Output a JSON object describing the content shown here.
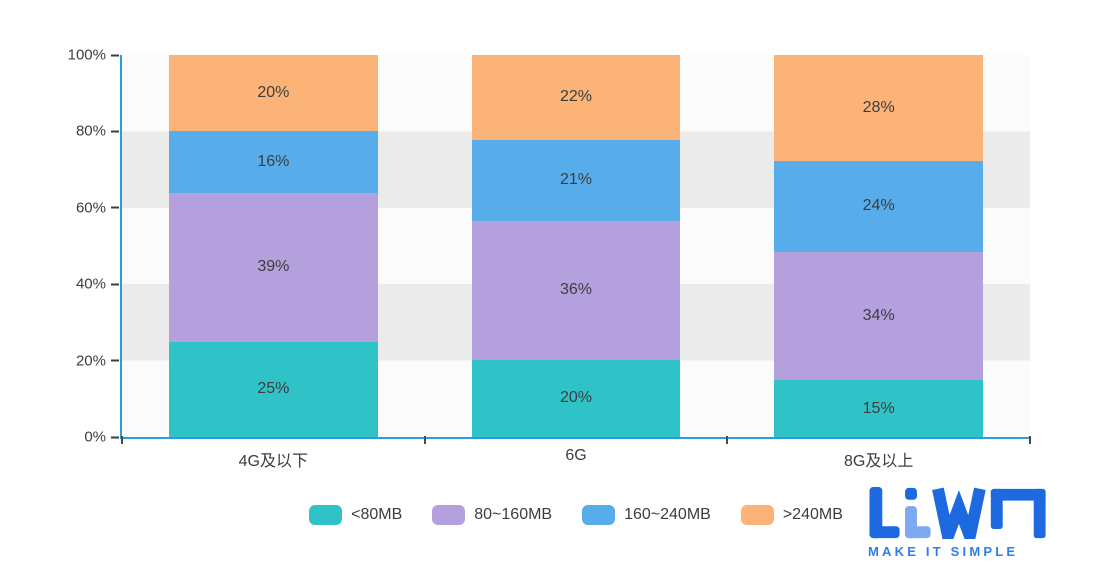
{
  "chart_data": {
    "type": "bar",
    "variant": "stacked-percent",
    "title": "",
    "categories": [
      "4G及以下",
      "6G",
      "8G及以上"
    ],
    "series": [
      {
        "name": "<80MB",
        "color": "#2fc3c7",
        "values": [
          25,
          20,
          15
        ]
      },
      {
        "name": "80~160MB",
        "color": "#b3a0dc",
        "values": [
          39,
          36,
          34
        ]
      },
      {
        "name": "160~240MB",
        "color": "#57ade9",
        "values": [
          16,
          21,
          24
        ]
      },
      {
        "name": ">240MB",
        "color": "#fcb377",
        "values": [
          20,
          22,
          28
        ]
      }
    ],
    "label_suffix": "%",
    "yticks": [
      "0%",
      "20%",
      "40%",
      "60%",
      "80%",
      "100%"
    ],
    "ylim": [
      0,
      100
    ],
    "grid": "horizontal-bands",
    "legend_position": "bottom",
    "axis_color": "#2c9be0"
  },
  "branding": {
    "logo_text": "LiWA",
    "tagline": "MAKE IT SIMPLE",
    "logo_dark_blue": "#1c69e0",
    "logo_light_blue": "#7ca9f1",
    "tagline_color": "#2d7fe9"
  }
}
